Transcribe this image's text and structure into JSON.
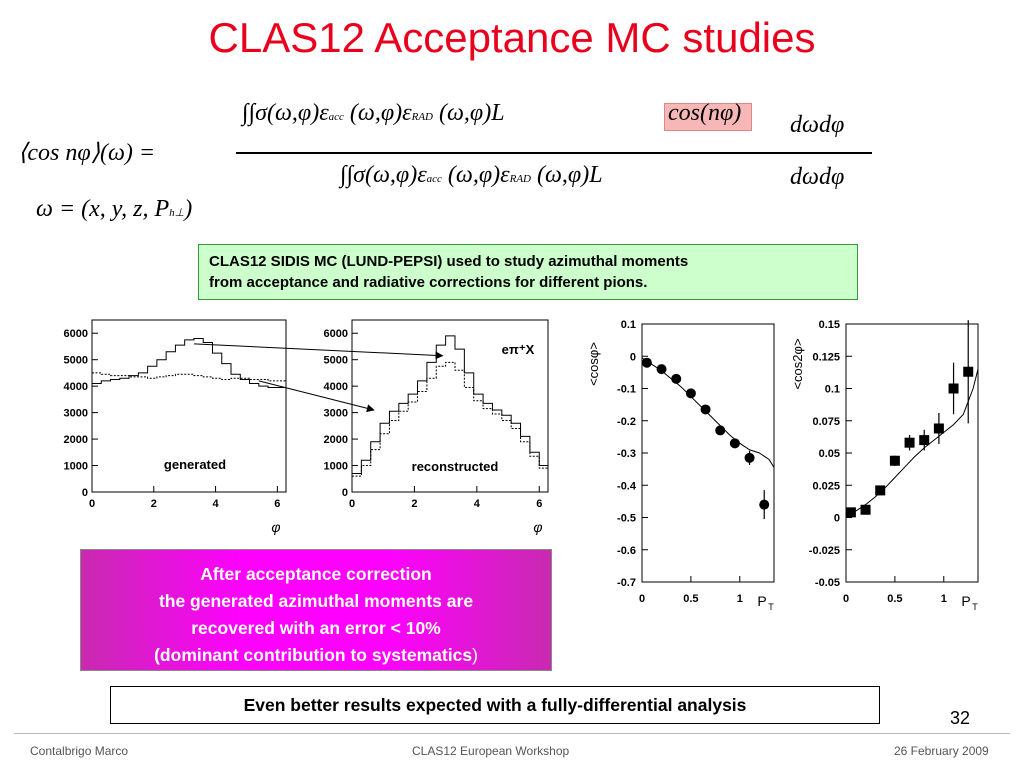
{
  "slide": {
    "title": "CLAS12 Acceptance MC studies",
    "page_number": "32",
    "footer": {
      "author": "Contalbrigo Marco",
      "event": "CLAS12 European Workshop",
      "date": "26 February 2009"
    }
  },
  "formula": {
    "lhs": "⟨cos nφ⟩(ω) =",
    "numerator": "∫∫σ(ω,φ)ε",
    "num_sub_acc": "acc",
    "numerator_mid": "(ω,φ)ε",
    "num_sub_rad": "RAD",
    "numerator_end": "(ω,φ)L",
    "cos_term": "cos(nφ)",
    "num_measure": "dωdφ",
    "denominator": "∫∫σ(ω,φ)ε",
    "den_sub_acc": "acc",
    "denominator_mid": "(ω,φ)ε",
    "den_sub_rad": "RAD",
    "denominator_end": "(ω,φ)L",
    "den_measure": "dωdφ",
    "omega_def": "ω = (x, y, z, P",
    "omega_sub": "h⊥",
    "omega_close": ")"
  },
  "info_box": {
    "line1": "CLAS12 SIDIS MC (LUND-PEPSI) used to study azimuthal moments",
    "line2": "from acceptance and radiative corrections for different pions."
  },
  "magenta_box": {
    "line1": "After acceptance correction",
    "line2": "the generated azimuthal moments are",
    "line3": "recovered with an error < 10%",
    "line4": "(dominant contribution to systematics",
    "line4_end": ")"
  },
  "bottom_box": {
    "text": "Even better results expected with a fully-differential analysis"
  },
  "colors": {
    "title": "#e8001c",
    "info_bg": "#ccffcc",
    "magenta": "#ff00ff"
  },
  "chart_data": [
    {
      "type": "line",
      "label": "generated",
      "xlabel": "φ",
      "xlim": [
        0,
        6.28
      ],
      "ylim": [
        0,
        6500
      ],
      "xticks": [
        "0",
        "2",
        "4",
        "6"
      ],
      "yticks": [
        "0",
        "1000",
        "2000",
        "3000",
        "4000",
        "5000",
        "6000"
      ],
      "series": [
        {
          "x": [
            0.0,
            0.3,
            0.6,
            0.9,
            1.2,
            1.5,
            1.8,
            2.1,
            2.4,
            2.7,
            3.0,
            3.3,
            3.6,
            3.9,
            4.2,
            4.5,
            4.8,
            5.1,
            5.4,
            5.7,
            6.0,
            6.28
          ],
          "values": [
            4100,
            4200,
            4250,
            4300,
            4400,
            4500,
            4750,
            5000,
            5300,
            5550,
            5750,
            5800,
            5650,
            5250,
            4850,
            4450,
            4250,
            4100,
            4000,
            3950,
            3950,
            3950
          ]
        },
        {
          "x": [
            0.0,
            0.3,
            0.6,
            0.9,
            1.2,
            1.5,
            1.8,
            2.1,
            2.4,
            2.7,
            3.0,
            3.3,
            3.6,
            3.9,
            4.2,
            4.5,
            4.8,
            5.1,
            5.4,
            5.7,
            6.0,
            6.28
          ],
          "values": [
            4500,
            4450,
            4400,
            4400,
            4350,
            4350,
            4300,
            4350,
            4400,
            4450,
            4450,
            4400,
            4350,
            4300,
            4250,
            4300,
            4300,
            4250,
            4250,
            4200,
            4200,
            4200
          ]
        }
      ]
    },
    {
      "type": "line",
      "label": "reconstructed",
      "annotation": "eπ⁺X",
      "xlabel": "φ",
      "xlim": [
        0,
        6.28
      ],
      "ylim": [
        0,
        6500
      ],
      "xticks": [
        "0",
        "2",
        "4",
        "6"
      ],
      "yticks": [
        "0",
        "1000",
        "2000",
        "3000",
        "4000",
        "5000",
        "6000"
      ],
      "series": [
        {
          "x": [
            0.0,
            0.3,
            0.6,
            0.9,
            1.2,
            1.5,
            1.8,
            2.1,
            2.4,
            2.7,
            3.0,
            3.3,
            3.6,
            3.9,
            4.2,
            4.5,
            4.8,
            5.1,
            5.4,
            5.7,
            6.0,
            6.28
          ],
          "values": [
            700,
            1200,
            1900,
            2600,
            3050,
            3350,
            3700,
            4200,
            4900,
            5550,
            5900,
            5400,
            4500,
            3700,
            3350,
            3100,
            2900,
            2600,
            2100,
            1500,
            1000,
            800
          ]
        },
        {
          "x": [
            0.0,
            0.3,
            0.6,
            0.9,
            1.2,
            1.5,
            1.8,
            2.1,
            2.4,
            2.7,
            3.0,
            3.3,
            3.6,
            3.9,
            4.2,
            4.5,
            4.8,
            5.1,
            5.4,
            5.7,
            6.0,
            6.28
          ],
          "values": [
            600,
            1000,
            1600,
            2200,
            2700,
            3050,
            3400,
            3800,
            4300,
            4750,
            4900,
            4600,
            3950,
            3450,
            3150,
            2950,
            2700,
            2400,
            1900,
            1350,
            900,
            700
          ]
        }
      ]
    },
    {
      "type": "scatter",
      "ylabel": "<cosφ>",
      "xlabel": "P",
      "xlabel_sub": "T",
      "xlim": [
        0,
        1.35
      ],
      "ylim": [
        -0.7,
        0.1
      ],
      "xticks": [
        "0",
        "0.5",
        "1"
      ],
      "yticks": [
        "0.1",
        "0",
        "-0.1",
        "-0.2",
        "-0.3",
        "-0.4",
        "-0.5",
        "-0.6",
        "-0.7"
      ],
      "points": {
        "x": [
          0.05,
          0.2,
          0.35,
          0.5,
          0.65,
          0.8,
          0.95,
          1.1,
          1.25
        ],
        "y": [
          -0.02,
          -0.04,
          -0.07,
          -0.115,
          -0.165,
          -0.23,
          -0.27,
          -0.315,
          -0.46
        ],
        "err": [
          0.005,
          0.005,
          0.006,
          0.008,
          0.01,
          0.012,
          0.015,
          0.022,
          0.045
        ]
      },
      "curve": {
        "x": [
          0.0,
          0.1,
          0.2,
          0.3,
          0.4,
          0.5,
          0.6,
          0.7,
          0.8,
          0.9,
          1.0,
          1.1,
          1.2,
          1.3,
          1.35
        ],
        "y": [
          -0.005,
          -0.025,
          -0.045,
          -0.07,
          -0.095,
          -0.125,
          -0.155,
          -0.185,
          -0.215,
          -0.245,
          -0.27,
          -0.29,
          -0.3,
          -0.32,
          -0.345
        ]
      }
    },
    {
      "type": "scatter",
      "ylabel": "<cos2φ>",
      "xlabel": "P",
      "xlabel_sub": "T",
      "xlim": [
        0,
        1.35
      ],
      "ylim": [
        -0.05,
        0.15
      ],
      "xticks": [
        "0",
        "0.5",
        "1"
      ],
      "yticks": [
        "0.15",
        "0.125",
        "0.1",
        "0.075",
        "0.05",
        "0.025",
        "0",
        "-0.025",
        "-0.05"
      ],
      "points": {
        "x": [
          0.05,
          0.2,
          0.35,
          0.5,
          0.65,
          0.8,
          0.95,
          1.1,
          1.25
        ],
        "y": [
          0.004,
          0.006,
          0.021,
          0.044,
          0.058,
          0.06,
          0.069,
          0.1,
          0.113
        ],
        "err": [
          0.002,
          0.002,
          0.003,
          0.004,
          0.006,
          0.008,
          0.012,
          0.02,
          0.04
        ]
      },
      "curve": {
        "x": [
          0.0,
          0.1,
          0.2,
          0.3,
          0.4,
          0.5,
          0.6,
          0.7,
          0.8,
          0.9,
          1.0,
          1.1,
          1.2,
          1.3,
          1.35
        ],
        "y": [
          0.002,
          0.005,
          0.01,
          0.016,
          0.023,
          0.031,
          0.039,
          0.047,
          0.054,
          0.06,
          0.066,
          0.072,
          0.08,
          0.1,
          0.115
        ]
      }
    }
  ]
}
